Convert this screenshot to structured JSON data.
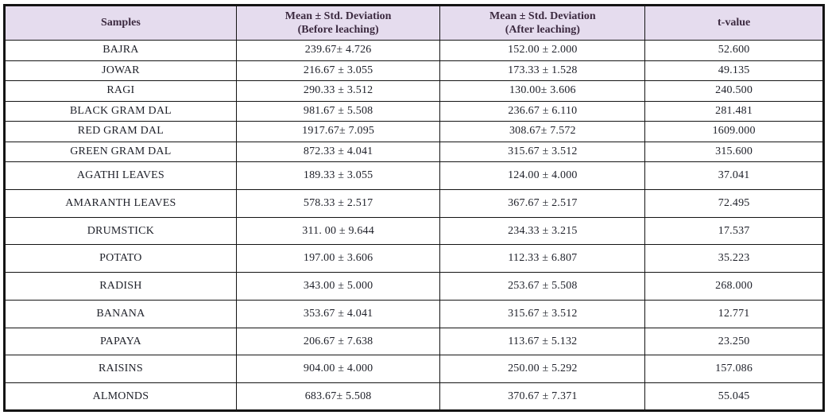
{
  "colors": {
    "header_bg": "#e5dcee",
    "header_text": "#3c2a40",
    "body_text": "#1e2029",
    "border": "#141414"
  },
  "table": {
    "columns": [
      {
        "key": "sample",
        "label": "Samples"
      },
      {
        "key": "before",
        "label": "Mean ± Std. Deviation\n(Before leaching)"
      },
      {
        "key": "after",
        "label": "Mean ± Std. Deviation\n(After leaching)"
      },
      {
        "key": "t_value",
        "label": "t-value"
      }
    ],
    "rows": [
      {
        "sample": "BAJRA",
        "before": "239.67± 4.726",
        "after": "152.00 ± 2.000",
        "t_value": "52.600"
      },
      {
        "sample": "JOWAR",
        "before": "216.67 ± 3.055",
        "after": "173.33 ± 1.528",
        "t_value": "49.135"
      },
      {
        "sample": "RAGI",
        "before": "290.33 ± 3.512",
        "after": "130.00± 3.606",
        "t_value": "240.500"
      },
      {
        "sample": "BLACK GRAM DAL",
        "before": "981.67 ± 5.508",
        "after": "236.67 ± 6.110",
        "t_value": "281.481"
      },
      {
        "sample": "RED GRAM DAL",
        "before": "1917.67± 7.095",
        "after": "308.67± 7.572",
        "t_value": "1609.000"
      },
      {
        "sample": "GREEN GRAM DAL",
        "before": "872.33 ± 4.041",
        "after": "315.67 ± 3.512",
        "t_value": "315.600"
      },
      {
        "sample": "AGATHI LEAVES",
        "before": "189.33 ± 3.055",
        "after": "124.00 ± 4.000",
        "t_value": "37.041"
      },
      {
        "sample": "AMARANTH LEAVES",
        "before": "578.33 ± 2.517",
        "after": "367.67 ± 2.517",
        "t_value": "72.495"
      },
      {
        "sample": "DRUMSTICK",
        "before": "311. 00 ± 9.644",
        "after": "234.33 ± 3.215",
        "t_value": "17.537"
      },
      {
        "sample": "POTATO",
        "before": "197.00 ± 3.606",
        "after": "112.33 ± 6.807",
        "t_value": "35.223"
      },
      {
        "sample": "RADISH",
        "before": "343.00 ± 5.000",
        "after": "253.67 ± 5.508",
        "t_value": "268.000"
      },
      {
        "sample": "BANANA",
        "before": "353.67 ± 4.041",
        "after": "315.67 ± 3.512",
        "t_value": "12.771"
      },
      {
        "sample": "PAPAYA",
        "before": "206.67 ± 7.638",
        "after": "113.67 ± 5.132",
        "t_value": "23.250"
      },
      {
        "sample": "RAISINS",
        "before": "904.00 ± 4.000",
        "after": "250.00 ± 5.292",
        "t_value": "157.086"
      },
      {
        "sample": "ALMONDS",
        "before": "683.67± 5.508",
        "after": "370.67 ± 7.371",
        "t_value": "55.045"
      }
    ]
  }
}
